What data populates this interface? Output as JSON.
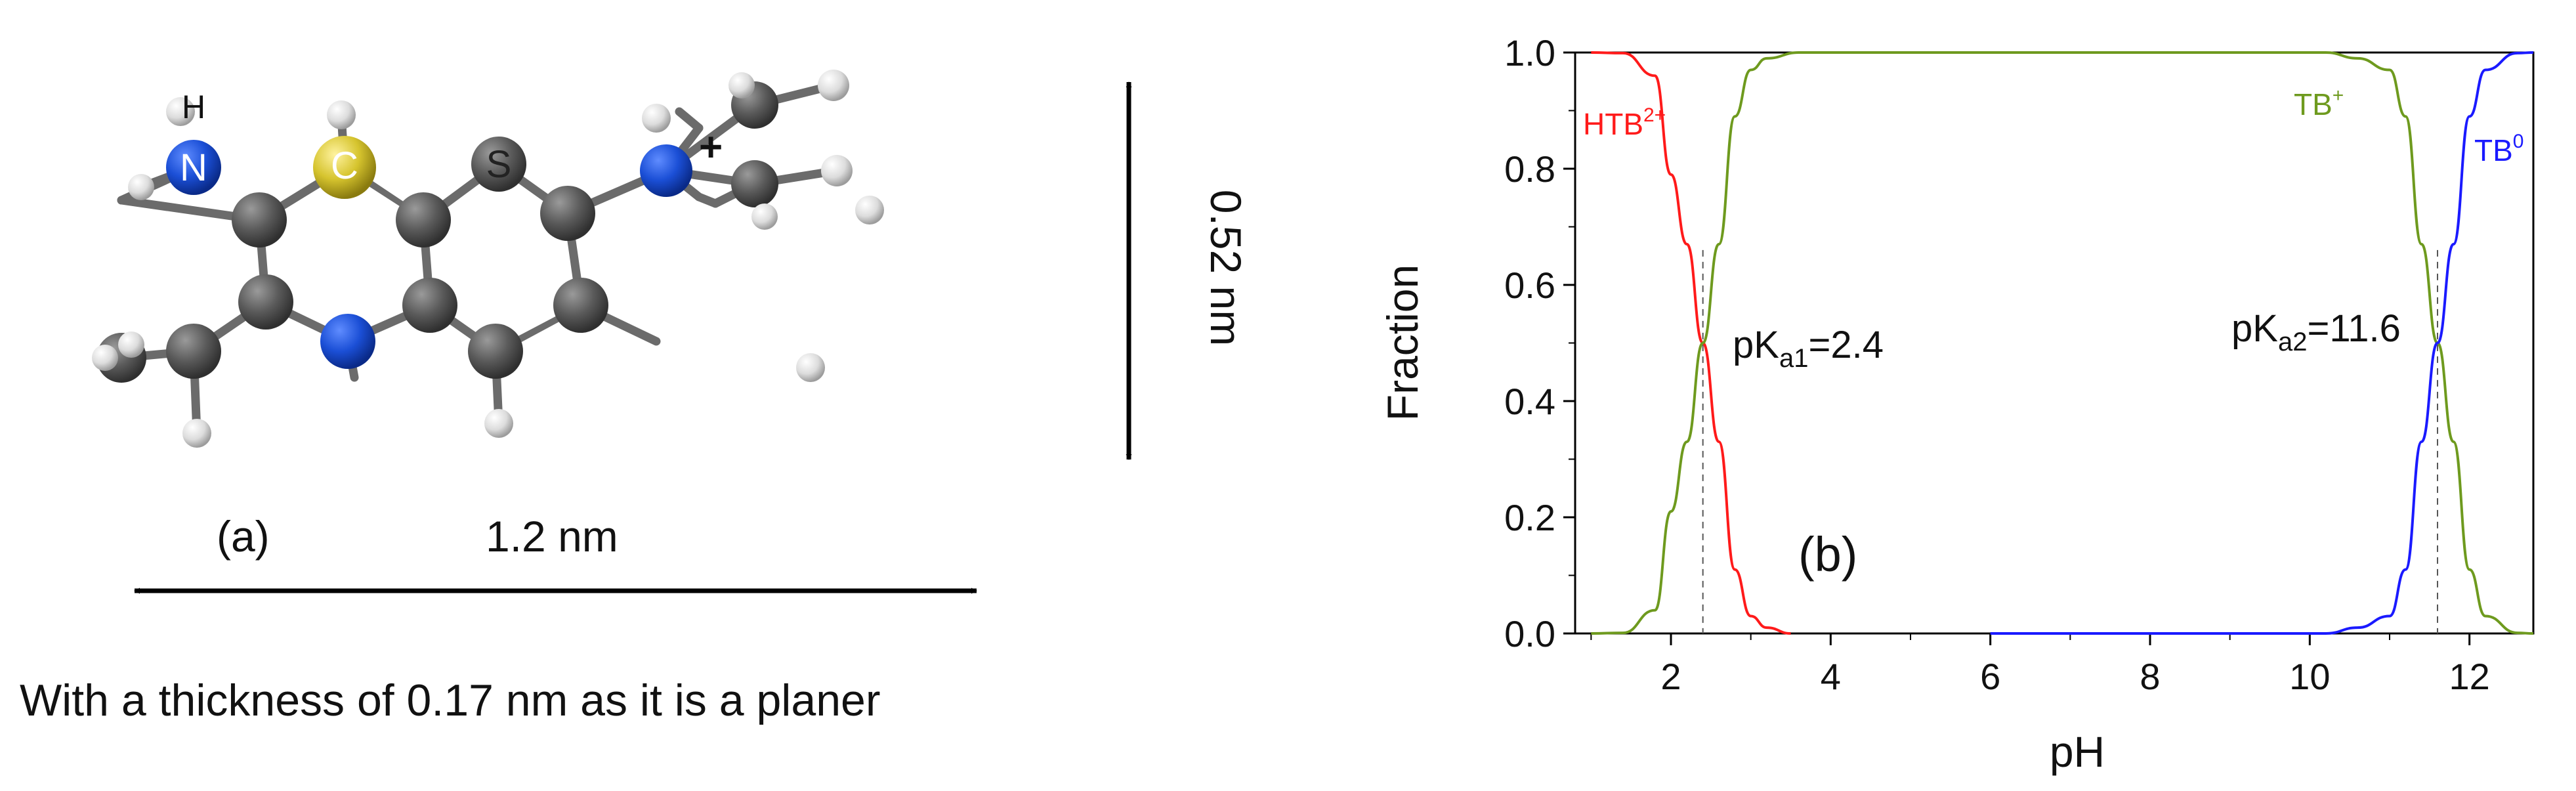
{
  "panel_a": {
    "panel_label": "(a)",
    "width_label": "1.2 nm",
    "height_label": "0.52 nm",
    "caption": "With a thickness of 0.17 nm as it is a planer",
    "atom_labels": {
      "h_top": "H",
      "n_left": "N",
      "c": "C",
      "s": "S",
      "plus": "+"
    },
    "colors": {
      "carbon": "#555555",
      "hydrogen": "#e0e0e0",
      "nitrogen": "#1b4fd6",
      "sulfur": "#d8c832"
    }
  },
  "chart_data": {
    "type": "line",
    "panel_label": "(b)",
    "xlabel": "pH",
    "ylabel": "Fraction",
    "xlim": [
      0.8,
      12.8
    ],
    "ylim": [
      0.0,
      1.0
    ],
    "xticks": [
      2,
      4,
      6,
      8,
      10,
      12
    ],
    "xtick_labels": [
      "2",
      "4",
      "6",
      "8",
      "10",
      "12"
    ],
    "yticks": [
      0.0,
      0.2,
      0.4,
      0.6,
      0.8,
      1.0
    ],
    "ytick_labels": [
      "0.0",
      "0.2",
      "0.4",
      "0.6",
      "0.8",
      "1.0"
    ],
    "grid": false,
    "pKa1": 2.4,
    "pKa2": 11.6,
    "annotations": {
      "pka1": {
        "base": "pK",
        "sub": "a1",
        "rest": "=2.4"
      },
      "pka2": {
        "base": "pK",
        "sub": "a2",
        "rest": "=11.6"
      }
    },
    "series": [
      {
        "name": "HTB",
        "sup": "2+",
        "color": "#ff1a1a",
        "x": [
          1.0,
          1.4,
          1.8,
          2.0,
          2.2,
          2.4,
          2.6,
          2.8,
          3.0,
          3.2,
          3.5
        ],
        "values": [
          1.0,
          0.999,
          0.96,
          0.79,
          0.67,
          0.5,
          0.33,
          0.11,
          0.03,
          0.01,
          0.0
        ]
      },
      {
        "name": "TB",
        "sup": "+",
        "color": "#6e9a1e",
        "x": [
          1.0,
          1.4,
          1.8,
          2.0,
          2.2,
          2.4,
          2.6,
          2.8,
          3.0,
          3.2,
          3.6,
          10.2,
          10.6,
          11.0,
          11.2,
          11.4,
          11.6,
          11.8,
          12.0,
          12.2,
          12.6,
          12.8
        ],
        "values": [
          0.0,
          0.001,
          0.04,
          0.21,
          0.33,
          0.5,
          0.67,
          0.89,
          0.97,
          0.99,
          1.0,
          1.0,
          0.99,
          0.97,
          0.89,
          0.67,
          0.5,
          0.33,
          0.11,
          0.03,
          0.001,
          0.0
        ]
      },
      {
        "name": "TB",
        "sup": "0",
        "color": "#1a1aff",
        "x": [
          6.0,
          10.2,
          10.6,
          11.0,
          11.2,
          11.4,
          11.6,
          11.8,
          12.0,
          12.2,
          12.6,
          12.8
        ],
        "values": [
          0.0,
          0.0,
          0.01,
          0.03,
          0.11,
          0.33,
          0.5,
          0.67,
          0.89,
          0.97,
          0.999,
          1.0
        ]
      }
    ]
  }
}
